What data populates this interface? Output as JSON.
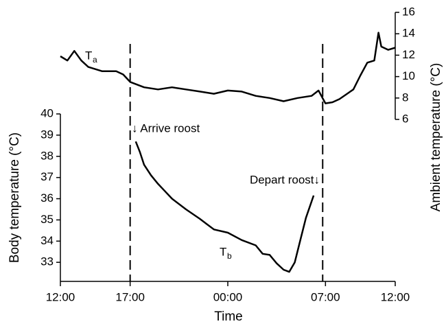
{
  "chart_data": {
    "type": "line",
    "xlabel": "Time",
    "ylabel": "Body temperature (°C)",
    "y2label": "Ambient temperature (°C)",
    "xlim": [
      0,
      24
    ],
    "xticks": [
      {
        "value": 0,
        "label": "12:00"
      },
      {
        "value": 5,
        "label": "17:00"
      },
      {
        "value": 12,
        "label": "00:00"
      },
      {
        "value": 19,
        "label": "07:00"
      },
      {
        "value": 24,
        "label": "12:00"
      }
    ],
    "ylim": [
      32.1,
      40
    ],
    "yticks": [
      33,
      34,
      35,
      36,
      37,
      38,
      39,
      40
    ],
    "y2lim": [
      6,
      16
    ],
    "y2ticks": [
      6,
      8,
      10,
      12,
      14,
      16
    ],
    "vlines": [
      5,
      18.8
    ],
    "annotations": [
      "↓ Arrive roost",
      "Depart roost↓"
    ],
    "series": [
      {
        "label": "T",
        "subscript": "b",
        "color": "#000000",
        "x": [
          5.4,
          5.7,
          6,
          6.5,
          7,
          7.5,
          8,
          9,
          10,
          10.5,
          11,
          12,
          13,
          14,
          14.5,
          15,
          15.5,
          16,
          16.4,
          16.8,
          17.2,
          17.6,
          18.15
        ],
        "values": [
          38.7,
          38.2,
          37.6,
          37.1,
          36.7,
          36.35,
          36.0,
          35.5,
          35.05,
          34.8,
          34.55,
          34.4,
          34.05,
          33.8,
          33.4,
          33.35,
          32.95,
          32.65,
          32.55,
          33.0,
          34.05,
          35.1,
          36.15
        ]
      },
      {
        "label": "T",
        "subscript": "a",
        "color": "#000000",
        "axis": "y2",
        "x": [
          0,
          0.5,
          1,
          1.5,
          2,
          3,
          4,
          4.5,
          5,
          6,
          7,
          8,
          9,
          10,
          11,
          12,
          13,
          14,
          15,
          16,
          17,
          18,
          18.5,
          19,
          19.5,
          20,
          21,
          21.5,
          22,
          22.5,
          22.8,
          23,
          23.5,
          24
        ],
        "values": [
          11.9,
          11.5,
          12.4,
          11.5,
          10.9,
          10.5,
          10.5,
          10.2,
          9.5,
          9.0,
          8.8,
          9.0,
          8.8,
          8.6,
          8.4,
          8.7,
          8.6,
          8.2,
          8.0,
          7.7,
          8.0,
          8.2,
          8.7,
          7.5,
          7.6,
          7.9,
          8.8,
          10.1,
          11.3,
          11.5,
          14.1,
          12.8,
          12.5,
          12.7
        ]
      }
    ]
  }
}
